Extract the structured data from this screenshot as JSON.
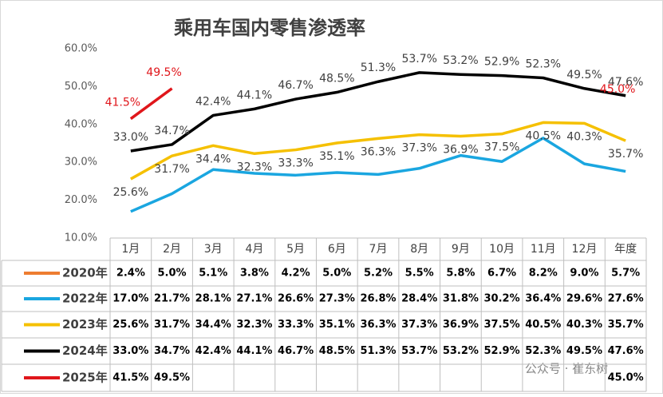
{
  "chart_data": {
    "type": "line",
    "title": "乘用车国内零售渗透率",
    "categories": [
      "1月",
      "2月",
      "3月",
      "4月",
      "5月",
      "6月",
      "7月",
      "8月",
      "9月",
      "10月",
      "11月",
      "12月",
      "年度"
    ],
    "ylim": [
      10,
      60
    ],
    "yticks": [
      {
        "value": 10,
        "label": "10.0%"
      },
      {
        "value": 20,
        "label": "20.0%"
      },
      {
        "value": 30,
        "label": "30.0%"
      },
      {
        "value": 40,
        "label": "40.0%"
      },
      {
        "value": 50,
        "label": "50.0%"
      },
      {
        "value": 60,
        "label": "60.0%"
      }
    ],
    "series": [
      {
        "name": "2020年",
        "color": "#ed7d31",
        "show_labels": false,
        "values": [
          2.4,
          5.0,
          5.1,
          3.8,
          4.2,
          5.0,
          5.2,
          5.5,
          5.8,
          6.7,
          8.2,
          9.0,
          5.7
        ],
        "value_labels": [
          "2.4%",
          "5.0%",
          "5.1%",
          "3.8%",
          "4.2%",
          "5.0%",
          "5.2%",
          "5.5%",
          "5.8%",
          "6.7%",
          "8.2%",
          "9.0%",
          "5.7%"
        ]
      },
      {
        "name": "2022年",
        "color": "#1aa6e0",
        "show_labels": false,
        "values": [
          17.0,
          21.7,
          28.1,
          27.1,
          26.6,
          27.3,
          26.8,
          28.4,
          31.8,
          30.2,
          36.4,
          29.6,
          27.6
        ],
        "value_labels": [
          "17.0%",
          "21.7%",
          "28.1%",
          "27.1%",
          "26.6%",
          "27.3%",
          "26.8%",
          "28.4%",
          "31.8%",
          "30.2%",
          "36.4%",
          "29.6%",
          "27.6%"
        ]
      },
      {
        "name": "2023年",
        "color": "#f5c000",
        "show_labels": true,
        "values": [
          25.6,
          31.7,
          34.4,
          32.3,
          33.3,
          35.1,
          36.3,
          37.3,
          36.9,
          37.5,
          40.5,
          40.3,
          35.7
        ],
        "value_labels": [
          "25.6%",
          "31.7%",
          "34.4%",
          "32.3%",
          "33.3%",
          "35.1%",
          "36.3%",
          "37.3%",
          "36.9%",
          "37.5%",
          "40.5%",
          "40.3%",
          "35.7%"
        ]
      },
      {
        "name": "2024年",
        "color": "#000000",
        "show_labels": true,
        "values": [
          33.0,
          34.7,
          42.4,
          44.1,
          46.7,
          48.5,
          51.3,
          53.7,
          53.2,
          52.9,
          52.3,
          49.5,
          47.6
        ],
        "value_labels": [
          "33.0%",
          "34.7%",
          "42.4%",
          "44.1%",
          "46.7%",
          "48.5%",
          "51.3%",
          "53.7%",
          "53.2%",
          "52.9%",
          "52.3%",
          "49.5%",
          "47.6%"
        ]
      },
      {
        "name": "2025年",
        "color": "#e0161b",
        "show_labels": true,
        "values": [
          41.5,
          49.5,
          null,
          null,
          null,
          null,
          null,
          null,
          null,
          null,
          null,
          null,
          45.0
        ],
        "value_labels": [
          "41.5%",
          "49.5%",
          null,
          null,
          null,
          null,
          null,
          null,
          null,
          null,
          null,
          null,
          "45.0%"
        ]
      }
    ],
    "watermark": "公众号 · 崔东树"
  }
}
